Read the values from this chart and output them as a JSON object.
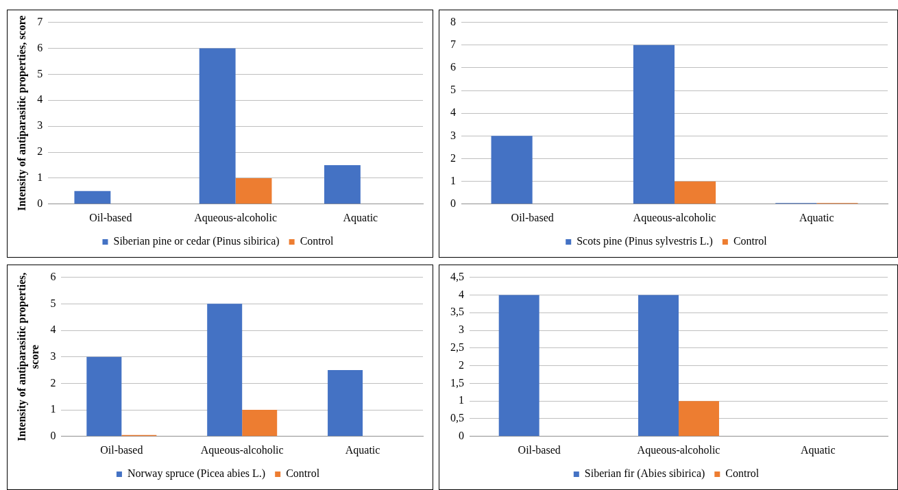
{
  "chart_data": [
    {
      "type": "bar",
      "ylabel": "Intensity of antiparasitic properties, score",
      "categories": [
        "Oil-based",
        "Aqueous-alcoholic",
        "Aquatic"
      ],
      "series": [
        {
          "name": "Siberian pine or cedar (Pinus sibirica)",
          "color": "#4472c4",
          "values": [
            0.5,
            6,
            1.5
          ]
        },
        {
          "name": "Control",
          "color": "#ed7d31",
          "values": [
            0,
            1,
            0
          ]
        }
      ],
      "ylim": [
        0,
        7
      ],
      "yticks": [
        0,
        1,
        2,
        3,
        4,
        5,
        6,
        7
      ],
      "grid": "y",
      "legend": "bottom"
    },
    {
      "type": "bar",
      "categories": [
        "Oil-based",
        "Aqueous-alcoholic",
        "Aquatic"
      ],
      "series": [
        {
          "name": "Scots pine (Pinus sylvestris L.)",
          "color": "#4472c4",
          "values": [
            3,
            7,
            0.05
          ]
        },
        {
          "name": "Control",
          "color": "#ed7d31",
          "values": [
            0,
            1,
            0.05
          ]
        }
      ],
      "ylim": [
        0,
        8
      ],
      "yticks": [
        0,
        1,
        2,
        3,
        4,
        5,
        6,
        7,
        8
      ],
      "grid": "y",
      "legend": "bottom"
    },
    {
      "type": "bar",
      "ylabel": "Intensity of antiparasitic properties, score",
      "categories": [
        "Oil-based",
        "Aqueous-alcoholic",
        "Aquatic"
      ],
      "series": [
        {
          "name": "Norway spruce (Picea abies L.)",
          "color": "#4472c4",
          "values": [
            3,
            5,
            2.5
          ]
        },
        {
          "name": "Control",
          "color": "#ed7d31",
          "values": [
            0.05,
            1,
            0
          ]
        }
      ],
      "ylim": [
        0,
        6
      ],
      "yticks": [
        0,
        1,
        2,
        3,
        4,
        5,
        6
      ],
      "grid": "y",
      "legend": "bottom"
    },
    {
      "type": "bar",
      "categories": [
        "Oil-based",
        "Aqueous-alcoholic",
        "Aquatic"
      ],
      "series": [
        {
          "name": "Siberian fir (Abies sibirica)",
          "color": "#4472c4",
          "values": [
            4,
            4,
            0
          ]
        },
        {
          "name": "Control",
          "color": "#ed7d31",
          "values": [
            0,
            1,
            0
          ]
        }
      ],
      "ylim": [
        0,
        4.5
      ],
      "yticks": [
        0,
        {
          "value": 0.5,
          "label": "0,5"
        },
        1,
        {
          "value": 1.5,
          "label": "1,5"
        },
        2,
        {
          "value": 2.5,
          "label": "2,5"
        },
        3,
        {
          "value": 3.5,
          "label": "3,5"
        },
        4,
        {
          "value": 4.5,
          "label": "4,5"
        }
      ],
      "grid": "y",
      "legend": "bottom"
    }
  ]
}
